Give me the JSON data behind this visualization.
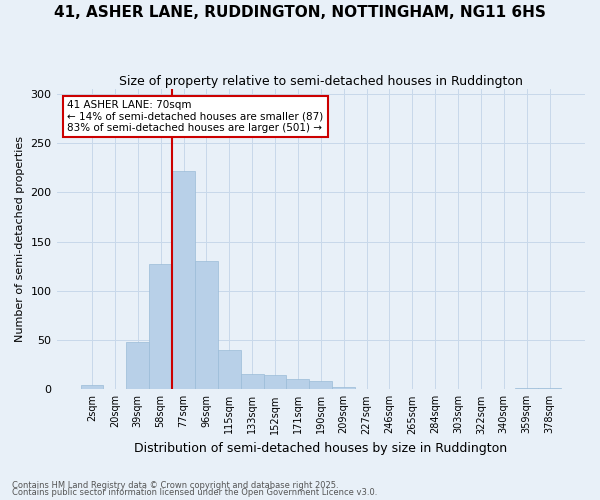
{
  "title": "41, ASHER LANE, RUDDINGTON, NOTTINGHAM, NG11 6HS",
  "subtitle": "Size of property relative to semi-detached houses in Ruddington",
  "xlabel": "Distribution of semi-detached houses by size in Ruddington",
  "ylabel": "Number of semi-detached properties",
  "categories": [
    "2sqm",
    "20sqm",
    "39sqm",
    "58sqm",
    "77sqm",
    "96sqm",
    "115sqm",
    "133sqm",
    "152sqm",
    "171sqm",
    "190sqm",
    "209sqm",
    "227sqm",
    "246sqm",
    "265sqm",
    "284sqm",
    "303sqm",
    "322sqm",
    "340sqm",
    "359sqm",
    "378sqm"
  ],
  "values": [
    4,
    0,
    48,
    127,
    222,
    130,
    40,
    16,
    15,
    10,
    8,
    2,
    0,
    0,
    0,
    0,
    0,
    0,
    0,
    1,
    1
  ],
  "bar_color": "#b8d0e8",
  "bar_edge_color": "#9bbcd8",
  "grid_color": "#c8d8ea",
  "bg_color": "#e8f0f8",
  "vline_color": "#cc0000",
  "vline_x": 3.5,
  "annotation_text": "41 ASHER LANE: 70sqm\n← 14% of semi-detached houses are smaller (87)\n83% of semi-detached houses are larger (501) →",
  "annotation_box_color": "#ffffff",
  "annotation_box_edge": "#cc0000",
  "footer1": "Contains HM Land Registry data © Crown copyright and database right 2025.",
  "footer2": "Contains public sector information licensed under the Open Government Licence v3.0.",
  "ylim": [
    0,
    305
  ],
  "yticks": [
    0,
    50,
    100,
    150,
    200,
    250,
    300
  ],
  "title_fontsize": 11,
  "subtitle_fontsize": 9
}
